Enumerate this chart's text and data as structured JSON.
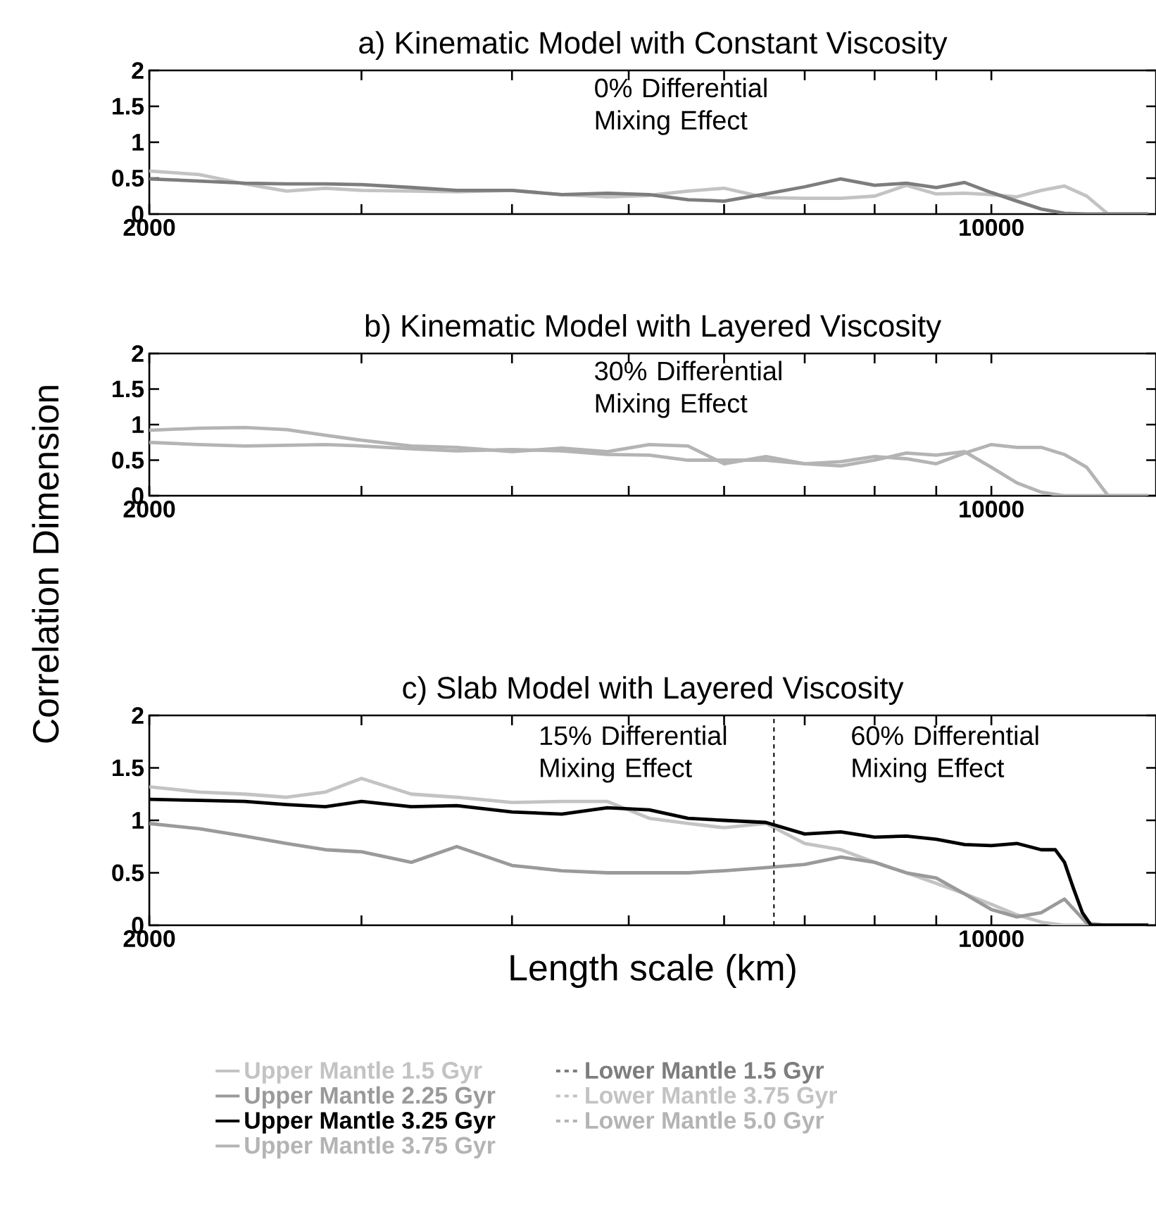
{
  "chart_data": [
    {
      "type": "line",
      "title": "a)  Kinematic Model with Constant Viscosity",
      "log": "x",
      "xlim": [
        2000,
        13700
      ],
      "ylim": [
        0,
        2
      ],
      "xticks": [
        2000,
        {
          "value": 3000,
          "label": null
        },
        {
          "value": 4000,
          "label": null
        },
        {
          "value": 5000,
          "label": null
        },
        {
          "value": 6000,
          "label": null
        },
        {
          "value": 7000,
          "label": null
        },
        {
          "value": 8000,
          "label": null
        },
        {
          "value": 9000,
          "label": null
        },
        10000
      ],
      "yticks": [
        0,
        0.5,
        1,
        1.5,
        2
      ],
      "annotations": [
        "0% Differential Mixing Effect"
      ],
      "x": [
        2000,
        2200,
        2400,
        2600,
        2800,
        3000,
        3300,
        3600,
        4000,
        4400,
        4800,
        5200,
        5600,
        6000,
        6500,
        7000,
        7500,
        8000,
        8500,
        9000,
        9500,
        10000,
        10500,
        11000,
        11500,
        12000,
        12500,
        13000,
        13500
      ],
      "series": [
        {
          "color": "#c3c3c3",
          "values": [
            0.6,
            0.55,
            0.42,
            0.32,
            0.36,
            0.33,
            0.32,
            0.31,
            0.33,
            0.27,
            0.24,
            0.26,
            0.32,
            0.36,
            0.23,
            0.22,
            0.22,
            0.25,
            0.4,
            0.28,
            0.29,
            0.27,
            0.24,
            0.33,
            0.39,
            0.25,
            0,
            0,
            0
          ]
        },
        {
          "color": "#7d7d7d",
          "values": [
            0.49,
            0.46,
            0.43,
            0.42,
            0.42,
            0.41,
            0.37,
            0.33,
            0.33,
            0.27,
            0.29,
            0.27,
            0.2,
            0.18,
            0.28,
            0.38,
            0.49,
            0.4,
            0.43,
            0.37,
            0.44,
            0.3,
            0.18,
            0.07,
            0.01,
            0,
            0,
            0,
            0
          ]
        }
      ]
    },
    {
      "type": "line",
      "title": "b)  Kinematic Model with Layered Viscosity",
      "ylabel": "Correlation Dimension",
      "log": "x",
      "xlim": [
        2000,
        13700
      ],
      "ylim": [
        0,
        2
      ],
      "xticks": [
        2000,
        {
          "value": 3000,
          "label": null
        },
        {
          "value": 4000,
          "label": null
        },
        {
          "value": 5000,
          "label": null
        },
        {
          "value": 6000,
          "label": null
        },
        {
          "value": 7000,
          "label": null
        },
        {
          "value": 8000,
          "label": null
        },
        {
          "value": 9000,
          "label": null
        },
        10000
      ],
      "yticks": [
        0,
        0.5,
        1,
        1.5,
        2
      ],
      "annotations": [
        "30% Differential Mixing Effect"
      ],
      "x": [
        2000,
        2200,
        2400,
        2600,
        2800,
        3000,
        3300,
        3600,
        4000,
        4400,
        4800,
        5200,
        5600,
        6000,
        6500,
        7000,
        7500,
        8000,
        8500,
        9000,
        9500,
        10000,
        10500,
        11000,
        11500,
        12000,
        12500,
        13000,
        13500
      ],
      "series": [
        {
          "color": "#b4b4b4",
          "values": [
            0.92,
            0.95,
            0.96,
            0.93,
            0.85,
            0.78,
            0.7,
            0.68,
            0.62,
            0.67,
            0.62,
            0.72,
            0.7,
            0.45,
            0.55,
            0.45,
            0.42,
            0.5,
            0.6,
            0.57,
            0.62,
            0.4,
            0.18,
            0.05,
            0,
            0,
            0,
            0,
            0
          ]
        },
        {
          "color": "#b4b4b4",
          "values": [
            0.75,
            0.72,
            0.7,
            0.71,
            0.72,
            0.7,
            0.66,
            0.63,
            0.65,
            0.63,
            0.58,
            0.57,
            0.5,
            0.5,
            0.5,
            0.45,
            0.48,
            0.55,
            0.52,
            0.45,
            0.6,
            0.72,
            0.68,
            0.68,
            0.58,
            0.4,
            0,
            0,
            0
          ]
        }
      ]
    },
    {
      "type": "line",
      "title": "c)  Slab Model with Layered Viscosity",
      "xlabel": "Length scale (km)",
      "log": "x",
      "xlim": [
        2000,
        13700
      ],
      "ylim": [
        0,
        2
      ],
      "xticks": [
        2000,
        {
          "value": 3000,
          "label": null
        },
        {
          "value": 4000,
          "label": null
        },
        {
          "value": 5000,
          "label": null
        },
        {
          "value": 6000,
          "label": null
        },
        {
          "value": 7000,
          "label": null
        },
        {
          "value": 8000,
          "label": null
        },
        {
          "value": 9000,
          "label": null
        },
        10000
      ],
      "yticks": [
        0,
        0.5,
        1,
        1.5,
        2
      ],
      "annotations": [
        "15% Differential Mixing Effect",
        "60% Differential Mixing Effect"
      ],
      "ref_lines": [
        {
          "axis": "x",
          "value": 6600,
          "color": "#000000",
          "line_style": "dashed"
        }
      ],
      "legend": "bottom",
      "x": [
        2000,
        2200,
        2400,
        2600,
        2800,
        3000,
        3300,
        3600,
        4000,
        4400,
        4800,
        5200,
        5600,
        6000,
        6500,
        7000,
        7500,
        8000,
        8500,
        9000,
        9500,
        10000,
        10500,
        11000,
        11500,
        12000,
        12500,
        13000,
        13500
      ],
      "series": [
        {
          "name": "Upper Mantle 1.5 Gyr",
          "color": "#c3c3c3",
          "values": [
            1.32,
            1.27,
            1.25,
            1.22,
            1.27,
            1.4,
            1.25,
            1.22,
            1.17,
            1.18,
            1.18,
            1.02,
            0.97,
            0.93,
            0.97,
            0.78,
            0.72,
            0.6,
            0.5,
            0.4,
            0.3,
            0.2,
            0.1,
            0.03,
            0,
            0,
            0,
            0,
            0
          ]
        },
        {
          "name": "Upper Mantle 2.25 Gyr",
          "color": "#9a9a9a",
          "values": [
            0.97,
            0.92,
            0.85,
            0.78,
            0.72,
            0.7,
            0.6,
            0.75,
            0.57,
            0.52,
            0.5,
            0.5,
            0.5,
            0.52,
            0.55,
            0.58,
            0.65,
            0.6,
            0.5,
            0.45,
            0.3,
            0.15,
            0.08,
            0.12,
            0.25,
            0.02,
            0,
            0,
            0
          ]
        },
        {
          "name": "Upper Mantle 3.25 Gyr",
          "color": "#000000",
          "x": [
            2000,
            2200,
            2400,
            2600,
            2800,
            3000,
            3300,
            3600,
            4000,
            4400,
            4800,
            5200,
            5600,
            6000,
            6500,
            7000,
            7500,
            8000,
            8500,
            9000,
            9500,
            10000,
            10500,
            11000,
            11300,
            11500,
            11700,
            11900,
            12100,
            13500
          ],
          "values": [
            1.2,
            1.19,
            1.18,
            1.15,
            1.13,
            1.18,
            1.13,
            1.14,
            1.08,
            1.06,
            1.12,
            1.1,
            1.02,
            1.0,
            0.98,
            0.87,
            0.89,
            0.84,
            0.85,
            0.82,
            0.77,
            0.76,
            0.78,
            0.72,
            0.72,
            0.6,
            0.35,
            0.12,
            0,
            0
          ]
        },
        {
          "name": "Upper Mantle 3.75 Gyr",
          "color": "#b4b4b4",
          "values": [
            null,
            null,
            null,
            null,
            null,
            null,
            null,
            null,
            null,
            null,
            null,
            null,
            null,
            null,
            null,
            null,
            null,
            null,
            null,
            null,
            null,
            null,
            null,
            null,
            null,
            null,
            null,
            null,
            null
          ]
        },
        {
          "name": "Lower Mantle 1.5 Gyr",
          "color": "#7d7d7d",
          "line_style": "dashed",
          "values": [
            null,
            null,
            null,
            null,
            null,
            null,
            null,
            null,
            null,
            null,
            null,
            null,
            null,
            null,
            null,
            null,
            null,
            null,
            null,
            null,
            null,
            null,
            null,
            null,
            null,
            null,
            null,
            null,
            null
          ]
        },
        {
          "name": "Lower Mantle 3.75 Gyr",
          "color": "#c3c3c3",
          "line_style": "dashed",
          "values": [
            null,
            null,
            null,
            null,
            null,
            null,
            null,
            null,
            null,
            null,
            null,
            null,
            null,
            null,
            null,
            null,
            null,
            null,
            null,
            null,
            null,
            null,
            null,
            null,
            null,
            null,
            null,
            null,
            null
          ]
        },
        {
          "name": "Lower Mantle 5.0 Gyr",
          "color": "#b4b4b4",
          "line_style": "dashed",
          "values": [
            null,
            null,
            null,
            null,
            null,
            null,
            null,
            null,
            null,
            null,
            null,
            null,
            null,
            null,
            null,
            null,
            null,
            null,
            null,
            null,
            null,
            null,
            null,
            null,
            null,
            null,
            null,
            null,
            null
          ]
        }
      ]
    }
  ]
}
